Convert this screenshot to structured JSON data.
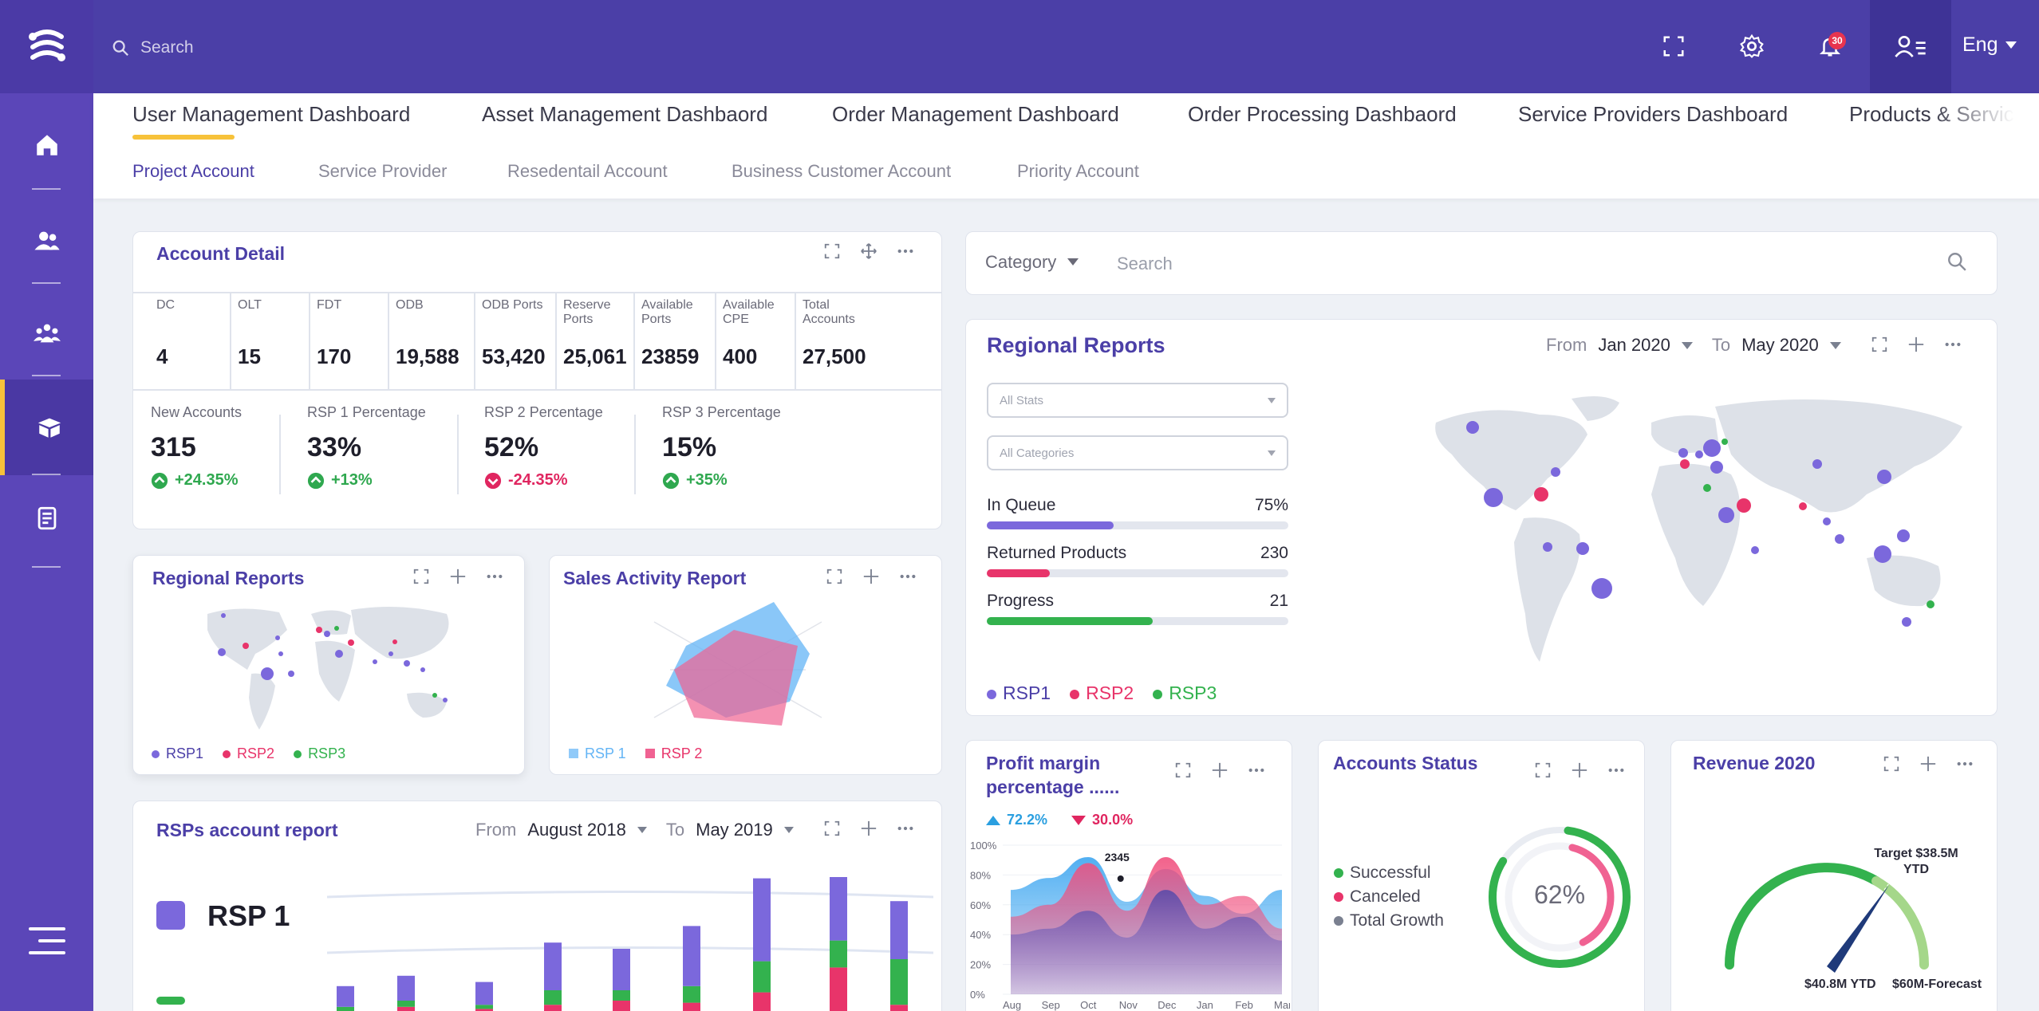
{
  "colors": {
    "brand": "#4b3fa7",
    "accent": "#f7c23a",
    "rsp1": "#7b68dc",
    "rsp2": "#e8346a",
    "rsp3": "#33b24e"
  },
  "topbar": {
    "search_placeholder": "Search",
    "notifications_count": "30",
    "language": "Eng"
  },
  "sidebar": {
    "items": [
      {
        "icon": "home-icon"
      },
      {
        "icon": "users-icon"
      },
      {
        "icon": "groups-icon"
      },
      {
        "icon": "box-icon",
        "active": true
      },
      {
        "icon": "document-icon"
      }
    ]
  },
  "tabs": {
    "main": [
      "User Management  Dashboard",
      "Asset Management Dashbaord",
      "Order Management Dashboard",
      "Order Processing Dashbaord",
      "Service Providers Dashboard",
      "Products & Servic"
    ],
    "sub": [
      "Project Account",
      "Service Provider",
      "Resedentail Account",
      "Business Customer Account",
      "Priority Account"
    ]
  },
  "account_detail": {
    "title": "Account Detail",
    "stats": [
      {
        "label": "DC",
        "value": "4"
      },
      {
        "label": "OLT",
        "value": "15"
      },
      {
        "label": "FDT",
        "value": "170"
      },
      {
        "label": "ODB",
        "value": "19,588"
      },
      {
        "label": "ODB Ports",
        "value": "53,420"
      },
      {
        "label": "Reserve Ports",
        "value": "25,061"
      },
      {
        "label": "Available Ports",
        "value": "23859"
      },
      {
        "label": "Available CPE",
        "value": "400"
      },
      {
        "label": "Total Accounts",
        "value": "27,500"
      }
    ],
    "summary": [
      {
        "label": "New Accounts",
        "value": "315",
        "change": "+24.35%",
        "dir": "up"
      },
      {
        "label": "RSP 1 Percentage",
        "value": "33%",
        "change": "+13%",
        "dir": "up"
      },
      {
        "label": "RSP 2 Percentage",
        "value": "52%",
        "change": "-24.35%",
        "dir": "down"
      },
      {
        "label": "RSP 3 Percentage",
        "value": "15%",
        "change": "+35%",
        "dir": "up"
      }
    ]
  },
  "regional_small": {
    "title": "Regional Reports",
    "legend": [
      "RSP1",
      "RSP2",
      "RSP3"
    ]
  },
  "sales_activity": {
    "title": "Sales Activity Report",
    "legend": [
      "RSP 1",
      "RSP 2"
    ]
  },
  "rsps_report": {
    "title": "RSPs account report",
    "from_label": "From",
    "from": "August 2018",
    "to_label": "To",
    "to": "May 2019",
    "series_label": "RSP 1"
  },
  "filter": {
    "category": "Category",
    "search_placeholder": "Search"
  },
  "regional_big": {
    "title": "Regional Reports",
    "from_label": "From",
    "from": "Jan 2020",
    "to_label": "To",
    "to": "May 2020",
    "stats_select": "All Stats",
    "categories_select": "All Categories",
    "progress": [
      {
        "label": "In Queue",
        "value": "75%",
        "fraction": 0.42,
        "color": "#7b68dc"
      },
      {
        "label": "Returned Products",
        "value": "230",
        "fraction": 0.21,
        "color": "#e8346a"
      },
      {
        "label": "Progress",
        "value": "21",
        "fraction": 0.55,
        "color": "#33b24e"
      }
    ],
    "legend": [
      "RSP1",
      "RSP2",
      "RSP3"
    ]
  },
  "profit": {
    "title": "Profit margin percentage ......",
    "up": "72.2%",
    "down": "30.0%",
    "tooltip": "2345",
    "y_ticks": [
      "100%",
      "80%",
      "60%",
      "40%",
      "20%",
      "0%"
    ],
    "x_ticks": [
      "Aug",
      "Sep",
      "Oct",
      "Nov",
      "Dec",
      "Jan",
      "Feb",
      "Mar"
    ]
  },
  "accounts_status": {
    "title": "Accounts Status",
    "legend": [
      "Successful",
      "Canceled",
      "Total Growth"
    ],
    "center": "62%",
    "percent": 62
  },
  "revenue": {
    "title": "Revenue 2020",
    "target": "Target $38.5M YTD",
    "current": "$40.8M YTD",
    "forecast": "$60M-Forecast"
  },
  "chart_data": [
    {
      "type": "bar",
      "title": "RSPs account report",
      "stacked": true,
      "series": [
        {
          "name": "RSP 1",
          "values": [
            20,
            24,
            22,
            46,
            40,
            58,
            80,
            78,
            56
          ]
        },
        {
          "name": "RSP 3",
          "values": [
            4,
            6,
            4,
            14,
            10,
            16,
            30,
            26,
            44
          ]
        },
        {
          "name": "RSP 2",
          "values": [
            0,
            4,
            2,
            6,
            10,
            8,
            18,
            42,
            6
          ]
        }
      ]
    },
    {
      "type": "area",
      "title": "Profit margin percentage ......",
      "x": [
        "Aug",
        "Sep",
        "Oct",
        "Nov",
        "Dec",
        "Jan",
        "Feb",
        "Mar"
      ],
      "ylim": [
        0,
        100
      ],
      "series": [
        {
          "name": "",
          "values": [
            70,
            78,
            92,
            62,
            84,
            66,
            54,
            70
          ]
        },
        {
          "name": "",
          "values": [
            52,
            60,
            88,
            56,
            92,
            60,
            66,
            44
          ]
        },
        {
          "name": "",
          "values": [
            40,
            44,
            56,
            38,
            70,
            44,
            52,
            36
          ]
        }
      ]
    }
  ]
}
